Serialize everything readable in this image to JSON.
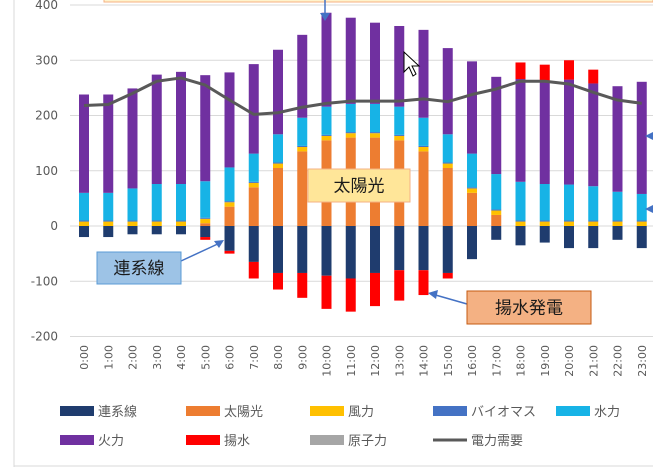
{
  "chart_data": {
    "type": "bar",
    "stacked": true,
    "ylim": [
      -200,
      400
    ],
    "yticks": [
      -200,
      -100,
      0,
      100,
      200,
      300,
      400
    ],
    "grid": true,
    "legend_position": "bottom",
    "categories": [
      "0:00",
      "1:00",
      "2:00",
      "3:00",
      "4:00",
      "5:00",
      "6:00",
      "7:00",
      "8:00",
      "9:00",
      "10:00",
      "11:00",
      "12:00",
      "13:00",
      "14:00",
      "15:00",
      "16:00",
      "17:00",
      "18:00",
      "19:00",
      "20:00",
      "21:00",
      "22:00",
      "23:00"
    ],
    "series": [
      {
        "name": "連系線",
        "color": "#1f3c6e",
        "values": [
          -20,
          -20,
          -15,
          -15,
          -15,
          -20,
          -45,
          -65,
          -85,
          -85,
          -90,
          -95,
          -85,
          -80,
          -80,
          -85,
          -60,
          -25,
          -35,
          -30,
          -40,
          -40,
          -25,
          -40
        ]
      },
      {
        "name": "太陽光",
        "color": "#ed7d31",
        "values": [
          0,
          0,
          0,
          0,
          0,
          5,
          35,
          70,
          105,
          135,
          155,
          160,
          160,
          155,
          135,
          105,
          60,
          20,
          0,
          0,
          0,
          0,
          0,
          0
        ]
      },
      {
        "name": "風力",
        "color": "#ffc000",
        "values": [
          8,
          8,
          8,
          8,
          8,
          8,
          8,
          8,
          8,
          8,
          8,
          8,
          8,
          8,
          8,
          8,
          8,
          8,
          8,
          8,
          8,
          8,
          8,
          8
        ]
      },
      {
        "name": "バイオマス",
        "color": "#4472c4",
        "values": [
          2,
          2,
          2,
          2,
          2,
          2,
          2,
          2,
          2,
          2,
          2,
          2,
          2,
          2,
          2,
          2,
          2,
          2,
          2,
          2,
          2,
          2,
          2,
          2
        ]
      },
      {
        "name": "水力",
        "color": "#17b3e6",
        "values": [
          50,
          50,
          58,
          66,
          66,
          66,
          61,
          51,
          51,
          51,
          51,
          51,
          51,
          51,
          51,
          51,
          61,
          64,
          70,
          66,
          65,
          62,
          52,
          48
        ]
      },
      {
        "name": "火力",
        "color": "#7030a0",
        "values": [
          178,
          178,
          181,
          198,
          203,
          192,
          172,
          162,
          153,
          150,
          170,
          156,
          147,
          146,
          159,
          156,
          167,
          176,
          186,
          186,
          190,
          186,
          191,
          203
        ]
      },
      {
        "name": "揚水",
        "color": "#ff0000",
        "values": [
          0,
          0,
          0,
          0,
          0,
          -5,
          -5,
          -30,
          -30,
          -45,
          -60,
          -60,
          -60,
          -55,
          -45,
          -10,
          0,
          0,
          30,
          30,
          35,
          25,
          0,
          0
        ]
      },
      {
        "name": "原子力",
        "color": "#a6a6a6",
        "values": [
          0,
          0,
          0,
          0,
          0,
          0,
          0,
          0,
          0,
          0,
          0,
          0,
          0,
          0,
          0,
          0,
          0,
          0,
          0,
          0,
          0,
          0,
          0,
          0
        ]
      }
    ],
    "line_series": {
      "name": "電力需要",
      "color": "#595959",
      "values": [
        218,
        220,
        240,
        262,
        268,
        255,
        228,
        202,
        205,
        215,
        222,
        226,
        226,
        226,
        230,
        225,
        238,
        248,
        262,
        262,
        257,
        242,
        228,
        222
      ]
    },
    "annotations": [
      {
        "text": "太陽光",
        "fill": "#ffe699",
        "stroke": "#f4b183"
      },
      {
        "text": "連系線",
        "fill": "#9dc3e6",
        "stroke": "#5b9bd5"
      },
      {
        "text": "揚水発電",
        "fill": "#f4b183",
        "stroke": "#c55a11"
      }
    ]
  }
}
